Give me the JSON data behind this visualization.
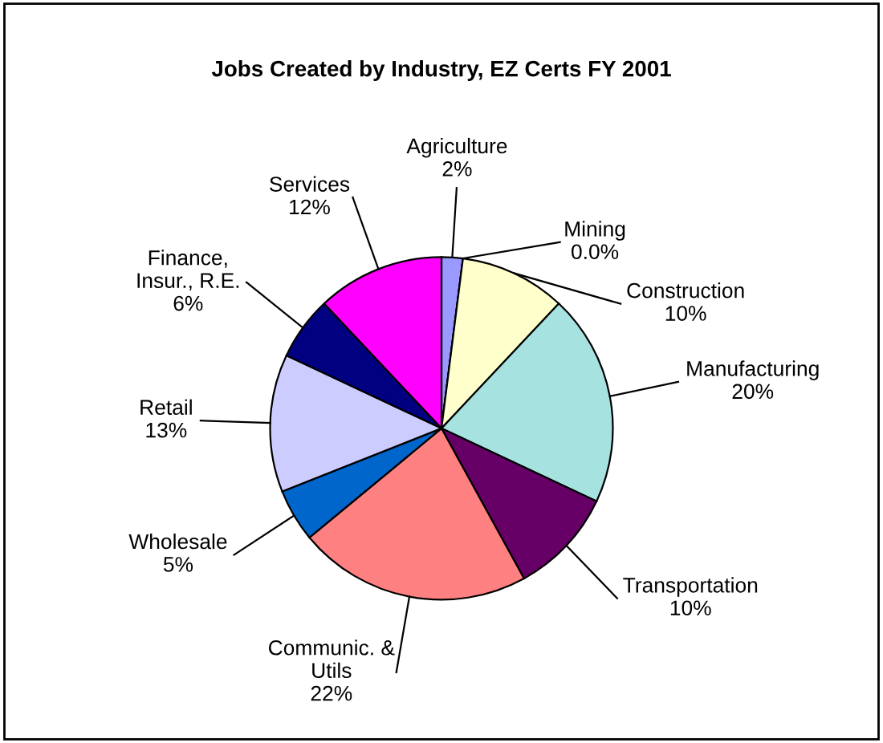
{
  "chart_data": {
    "type": "pie",
    "title": "Jobs Created by Industry, EZ Certs FY 2001",
    "categories": [
      "Agriculture",
      "Mining",
      "Construction",
      "Manufacturing",
      "Transportation",
      "Communic. &\nUtils",
      "Wholesale",
      "Retail",
      "Finance,\nInsur., R.E.",
      "Services"
    ],
    "values": [
      2,
      0.0,
      10,
      20,
      10,
      22,
      5,
      13,
      6,
      12
    ],
    "value_labels": [
      "2%",
      "0.0%",
      "10%",
      "20%",
      "10%",
      "22%",
      "5%",
      "13%",
      "6%",
      "12%"
    ],
    "colors": [
      "#9999ff",
      "#993366",
      "#ffffcc",
      "#a6e3e0",
      "#660066",
      "#ff8080",
      "#0066cc",
      "#ccccff",
      "#000080",
      "#ff00ff"
    ],
    "legend": false
  }
}
